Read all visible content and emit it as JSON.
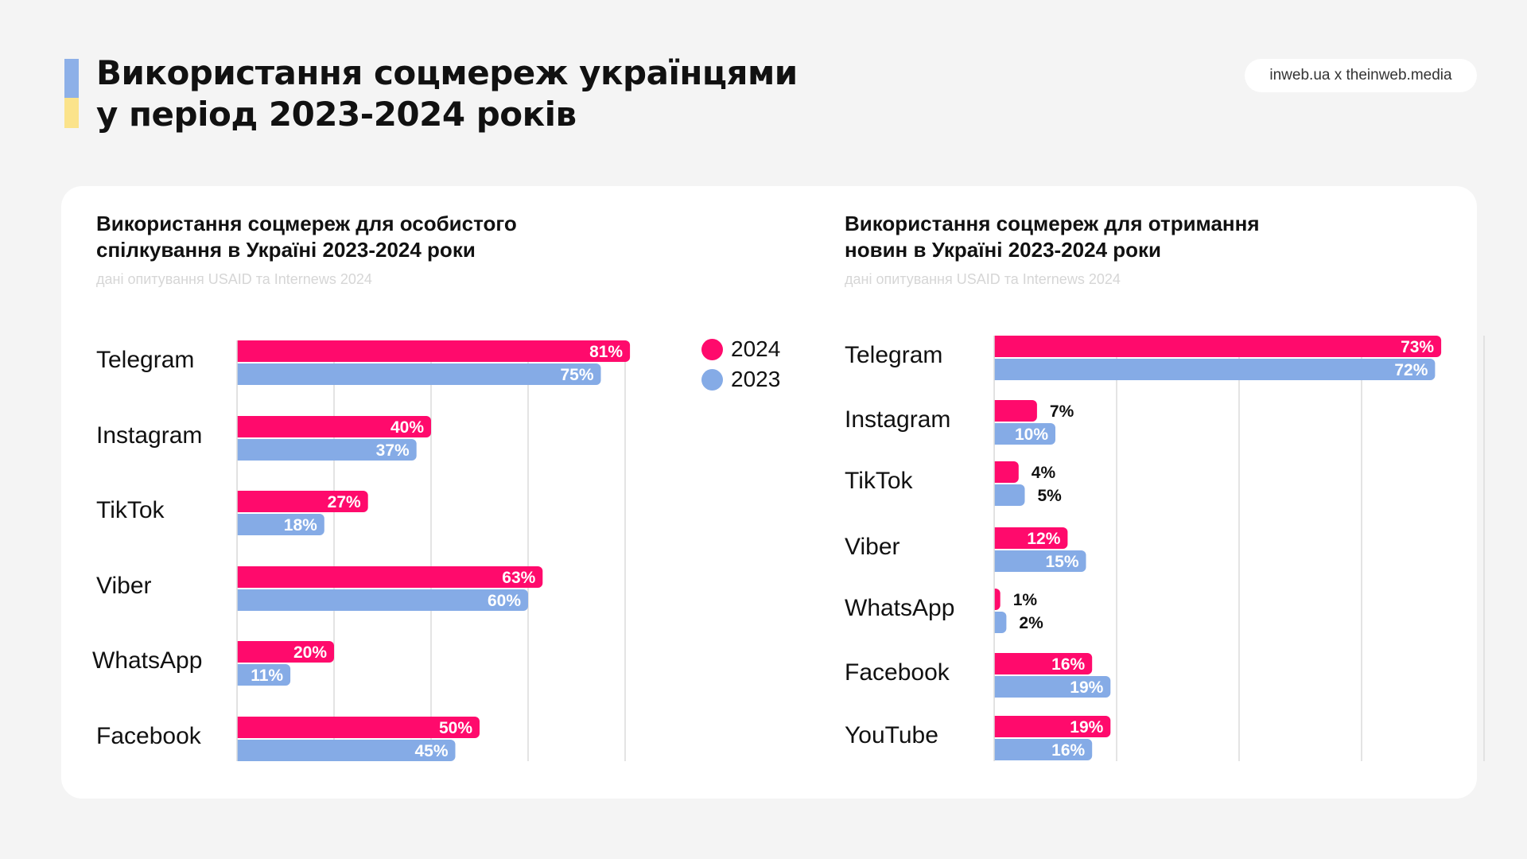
{
  "header": {
    "title": "Використання соцмереж українцями\nу період 2023-2024 років",
    "source": "inweb.ua x theinweb.media",
    "flag_colors": [
      "#8DB0E8",
      "#FBE38B"
    ]
  },
  "colors": {
    "s2024": "#FF0A6C",
    "s2023": "#85ABE6",
    "grid": "#DCDCDC"
  },
  "legend": [
    {
      "label": "2024",
      "color": "#FF0A6C"
    },
    {
      "label": "2023",
      "color": "#85ABE6"
    }
  ],
  "panels": {
    "left": {
      "title": "Використання соцмереж для особистого\nспілкування в Україні 2023-2024 роки",
      "subtitle": "дані опитування USAID та Internews 2024"
    },
    "right": {
      "title": "Використання соцмереж для отримання\nновин в Україні 2023-2024 роки",
      "subtitle": "дані опитування USAID та Internews 2024"
    }
  },
  "chart_data": [
    {
      "type": "bar",
      "orientation": "horizontal",
      "title": "Використання соцмереж для особистого спілкування в Україні 2023-2024 роки",
      "subtitle": "дані опитування USAID та Internews 2024",
      "categories": [
        "Telegram",
        "Instagram",
        "TikTok",
        "Viber",
        "WhatsApp",
        "Facebook"
      ],
      "series": [
        {
          "name": "2024",
          "values": [
            81,
            40,
            27,
            63,
            20,
            50
          ],
          "labels": [
            "81%",
            "40%",
            "27%",
            "63%",
            "20%",
            "50%"
          ]
        },
        {
          "name": "2023",
          "values": [
            75,
            37,
            18,
            60,
            11,
            45
          ],
          "labels": [
            "75%",
            "37%",
            "18%",
            "60%",
            "11%",
            "45%"
          ]
        }
      ],
      "xlim": [
        0,
        80
      ],
      "grid": true,
      "legend": "top-right"
    },
    {
      "type": "bar",
      "orientation": "horizontal",
      "title": "Використання соцмереж для отримання новин в Україні 2023-2024 роки",
      "subtitle": "дані опитування USAID та Internews 2024",
      "categories": [
        "Telegram",
        "Instagram",
        "TikTok",
        "Viber",
        "WhatsApp",
        "Facebook",
        "YouTube"
      ],
      "series": [
        {
          "name": "2024",
          "values": [
            73,
            7,
            4,
            12,
            1,
            16,
            19
          ],
          "labels": [
            "73%",
            "7%",
            "4%",
            "12%",
            "1%",
            "16%",
            "19%"
          ]
        },
        {
          "name": "2023",
          "values": [
            72,
            10,
            5,
            15,
            2,
            19,
            16
          ],
          "labels": [
            "72%",
            "10%",
            "5%",
            "15%",
            "2%",
            "19%",
            "16%"
          ]
        }
      ],
      "xlim": [
        0,
        80
      ],
      "grid": true
    }
  ]
}
